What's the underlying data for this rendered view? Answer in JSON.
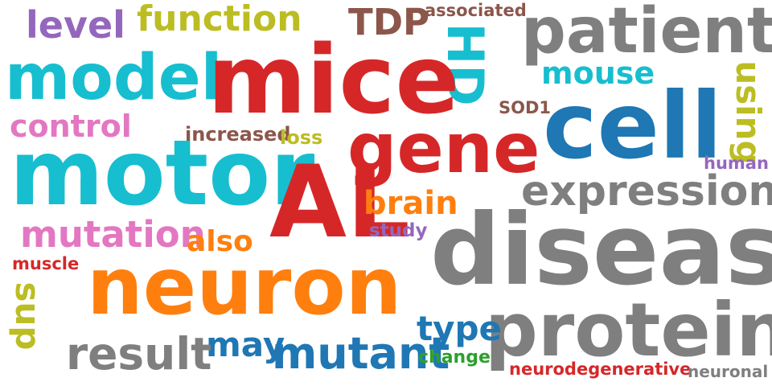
{
  "words": [
    {
      "text": "level",
      "color": "#9467bd"
    },
    {
      "text": "function",
      "color": "#bcbd22"
    },
    {
      "text": "TDP",
      "color": "#8c564b"
    },
    {
      "text": "associated",
      "color": "#8c564b"
    },
    {
      "text": "patient",
      "color": "#7f7f7f"
    },
    {
      "text": "HD",
      "color": "#17becf"
    },
    {
      "text": "model",
      "color": "#17becf"
    },
    {
      "text": "mice",
      "color": "#d62728"
    },
    {
      "text": "mouse",
      "color": "#17becf"
    },
    {
      "text": "using",
      "color": "#bcbd22"
    },
    {
      "text": "SOD1",
      "color": "#8c564b"
    },
    {
      "text": "control",
      "color": "#e377c2"
    },
    {
      "text": "cell",
      "color": "#1f77b4"
    },
    {
      "text": "gene",
      "color": "#d62728"
    },
    {
      "text": "increased",
      "color": "#8c564b"
    },
    {
      "text": "loss",
      "color": "#bcbd22"
    },
    {
      "text": "human",
      "color": "#9467bd"
    },
    {
      "text": "motor",
      "color": "#17becf"
    },
    {
      "text": "AL",
      "color": "#d62728"
    },
    {
      "text": "expression",
      "color": "#7f7f7f"
    },
    {
      "text": "brain",
      "color": "#ff7f0e"
    },
    {
      "text": "mutation",
      "color": "#e377c2"
    },
    {
      "text": "also",
      "color": "#ff7f0e"
    },
    {
      "text": "study",
      "color": "#9467bd"
    },
    {
      "text": "disease",
      "color": "#7f7f7f"
    },
    {
      "text": "muscle",
      "color": "#d62728"
    },
    {
      "text": "neuron",
      "color": "#ff7f0e"
    },
    {
      "text": "sup",
      "color": "#bcbd22"
    },
    {
      "text": "protein",
      "color": "#7f7f7f"
    },
    {
      "text": "type",
      "color": "#1f77b4"
    },
    {
      "text": "may",
      "color": "#1f77b4"
    },
    {
      "text": "mutant",
      "color": "#1f77b4"
    },
    {
      "text": "result",
      "color": "#7f7f7f"
    },
    {
      "text": "change",
      "color": "#2ca02c"
    },
    {
      "text": "neurodegenerative",
      "color": "#d62728"
    },
    {
      "text": "neuronal",
      "color": "#7f7f7f"
    }
  ]
}
